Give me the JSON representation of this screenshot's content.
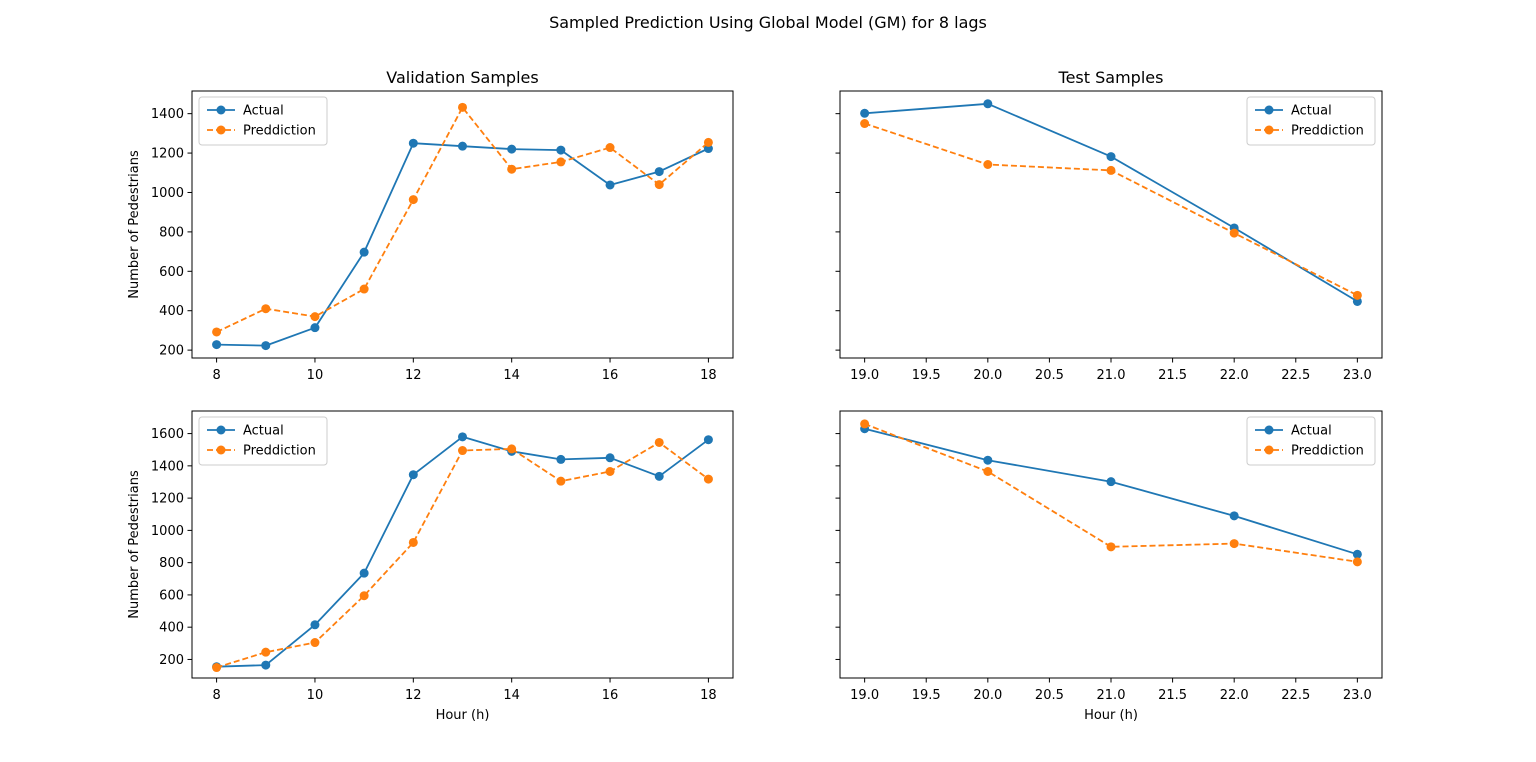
{
  "figure": {
    "suptitle": "Sampled Prediction Using Global Model (GM) for 8 lags"
  },
  "colors": {
    "actual": "#1f77b4",
    "prediction": "#ff7f0e"
  },
  "chart_data": [
    {
      "type": "line",
      "title": "Validation Samples",
      "xlabel": "",
      "ylabel": "Number of Pedestrians",
      "xlim": [
        7.5,
        18.5
      ],
      "ylim": [
        160,
        1515
      ],
      "xticks": [
        8,
        10,
        12,
        14,
        16,
        18
      ],
      "xtick_labels": [
        "8",
        "10",
        "12",
        "14",
        "16",
        "18"
      ],
      "yticks": [
        200,
        400,
        600,
        800,
        1000,
        1200,
        1400
      ],
      "ytick_labels": [
        "200",
        "400",
        "600",
        "800",
        "1000",
        "1200",
        "1400"
      ],
      "show_ytick_labels": true,
      "legend": "upper-left",
      "grid": false,
      "x": [
        8,
        9,
        10,
        11,
        12,
        13,
        14,
        15,
        16,
        17,
        18
      ],
      "series": [
        {
          "name": "Actual",
          "style": "solid",
          "values": [
            228,
            223,
            314,
            697,
            1250,
            1235,
            1220,
            1215,
            1038,
            1106,
            1223
          ]
        },
        {
          "name": "Preddiction",
          "style": "dashed",
          "values": [
            292,
            410,
            370,
            510,
            964,
            1432,
            1118,
            1155,
            1228,
            1040,
            1254
          ]
        }
      ]
    },
    {
      "type": "line",
      "title": "Test Samples",
      "xlabel": "",
      "ylabel": "",
      "xlim": [
        18.8,
        23.2
      ],
      "ylim": [
        160,
        1515
      ],
      "xticks": [
        19.0,
        19.5,
        20.0,
        20.5,
        21.0,
        21.5,
        22.0,
        22.5,
        23.0
      ],
      "xtick_labels": [
        "19.0",
        "19.5",
        "20.0",
        "20.5",
        "21.0",
        "21.5",
        "22.0",
        "22.5",
        "23.0"
      ],
      "yticks": [
        200,
        400,
        600,
        800,
        1000,
        1200,
        1400
      ],
      "show_ytick_labels": false,
      "legend": "upper-right",
      "grid": false,
      "x": [
        19,
        20,
        21,
        22,
        23
      ],
      "series": [
        {
          "name": "Actual",
          "style": "solid",
          "values": [
            1402,
            1450,
            1182,
            820,
            447
          ]
        },
        {
          "name": "Preddiction",
          "style": "dashed",
          "values": [
            1350,
            1142,
            1112,
            794,
            478
          ]
        }
      ]
    },
    {
      "type": "line",
      "title": "",
      "xlabel": "Hour (h)",
      "ylabel": "Number of Pedestrians",
      "xlim": [
        7.5,
        18.5
      ],
      "ylim": [
        85,
        1740
      ],
      "xticks": [
        8,
        10,
        12,
        14,
        16,
        18
      ],
      "xtick_labels": [
        "8",
        "10",
        "12",
        "14",
        "16",
        "18"
      ],
      "yticks": [
        200,
        400,
        600,
        800,
        1000,
        1200,
        1400,
        1600
      ],
      "ytick_labels": [
        "200",
        "400",
        "600",
        "800",
        "1000",
        "1200",
        "1400",
        "1600"
      ],
      "show_ytick_labels": true,
      "legend": "upper-left",
      "grid": false,
      "x": [
        8,
        9,
        10,
        11,
        12,
        13,
        14,
        15,
        16,
        17,
        18
      ],
      "series": [
        {
          "name": "Actual",
          "style": "solid",
          "values": [
            155,
            165,
            415,
            735,
            1345,
            1580,
            1490,
            1440,
            1450,
            1335,
            1562
          ]
        },
        {
          "name": "Preddiction",
          "style": "dashed",
          "values": [
            150,
            245,
            305,
            595,
            925,
            1495,
            1505,
            1305,
            1365,
            1545,
            1318
          ]
        }
      ]
    },
    {
      "type": "line",
      "title": "",
      "xlabel": "Hour (h)",
      "ylabel": "",
      "xlim": [
        18.8,
        23.2
      ],
      "ylim": [
        85,
        1740
      ],
      "xticks": [
        19.0,
        19.5,
        20.0,
        20.5,
        21.0,
        21.5,
        22.0,
        22.5,
        23.0
      ],
      "xtick_labels": [
        "19.0",
        "19.5",
        "20.0",
        "20.5",
        "21.0",
        "21.5",
        "22.0",
        "22.5",
        "23.0"
      ],
      "yticks": [
        200,
        400,
        600,
        800,
        1000,
        1200,
        1400,
        1600
      ],
      "show_ytick_labels": false,
      "legend": "upper-right",
      "grid": false,
      "x": [
        19,
        20,
        21,
        22,
        23
      ],
      "series": [
        {
          "name": "Actual",
          "style": "solid",
          "values": [
            1630,
            1435,
            1302,
            1090,
            852
          ]
        },
        {
          "name": "Preddiction",
          "style": "dashed",
          "values": [
            1660,
            1365,
            898,
            918,
            805
          ]
        }
      ]
    }
  ]
}
